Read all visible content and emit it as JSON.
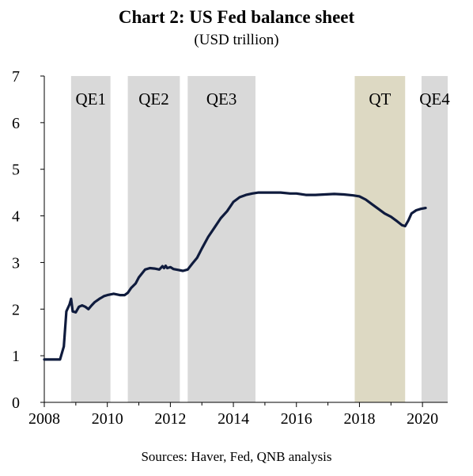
{
  "title": "Chart 2: US Fed balance sheet",
  "subtitle": "(USD trillion)",
  "source": "Sources: Haver, Fed, QNB analysis",
  "colors": {
    "line": "#0f1b3d",
    "qe_band": "#d9d9d9",
    "qt_band": "#ddd9c3",
    "axis": "#000000"
  },
  "chart_data": {
    "type": "line",
    "xlim": [
      2008,
      2020.8
    ],
    "ylim": [
      0,
      7
    ],
    "x_ticks": [
      "2008",
      "2010",
      "2012",
      "2014",
      "2016",
      "2018",
      "2020"
    ],
    "y_ticks": [
      "0",
      "1",
      "2",
      "3",
      "4",
      "5",
      "6",
      "7"
    ],
    "shaded_periods": [
      {
        "label": "QE1",
        "start": 2008.85,
        "end": 2010.1,
        "kind": "qe"
      },
      {
        "label": "QE2",
        "start": 2010.65,
        "end": 2012.3,
        "kind": "qe"
      },
      {
        "label": "QE3",
        "start": 2012.55,
        "end": 2014.7,
        "kind": "qe"
      },
      {
        "label": "QT",
        "start": 2017.85,
        "end": 2019.45,
        "kind": "qt"
      },
      {
        "label": "QE4",
        "start": 2019.97,
        "end": 2020.8,
        "kind": "qe"
      }
    ],
    "series": [
      {
        "x": [
          2008.0,
          2008.25,
          2008.5,
          2008.62,
          2008.7,
          2008.8,
          2008.85,
          2008.9,
          2009.0,
          2009.1,
          2009.2,
          2009.3,
          2009.4,
          2009.5,
          2009.6,
          2009.75,
          2009.9,
          2010.0,
          2010.2,
          2010.4,
          2010.55,
          2010.65,
          2010.75,
          2010.9,
          2011.0,
          2011.2,
          2011.35,
          2011.5,
          2011.65,
          2011.75,
          2011.8,
          2011.85,
          2011.9,
          2012.0,
          2012.1,
          2012.25,
          2012.4,
          2012.55,
          2012.7,
          2012.85,
          2013.0,
          2013.2,
          2013.4,
          2013.6,
          2013.8,
          2014.0,
          2014.2,
          2014.4,
          2014.6,
          2014.8,
          2015.0,
          2015.2,
          2015.5,
          2015.8,
          2016.0,
          2016.3,
          2016.6,
          2016.9,
          2017.2,
          2017.5,
          2017.8,
          2018.0,
          2018.2,
          2018.4,
          2018.6,
          2018.8,
          2019.0,
          2019.2,
          2019.35,
          2019.45,
          2019.55,
          2019.65,
          2019.8,
          2019.95,
          2020.1
        ],
        "values": [
          0.92,
          0.92,
          0.92,
          1.2,
          1.95,
          2.1,
          2.22,
          1.95,
          1.93,
          2.05,
          2.08,
          2.05,
          2.0,
          2.08,
          2.15,
          2.22,
          2.28,
          2.3,
          2.33,
          2.3,
          2.3,
          2.35,
          2.45,
          2.55,
          2.68,
          2.85,
          2.88,
          2.87,
          2.85,
          2.92,
          2.88,
          2.93,
          2.88,
          2.9,
          2.86,
          2.84,
          2.82,
          2.85,
          2.98,
          3.1,
          3.3,
          3.55,
          3.75,
          3.95,
          4.1,
          4.3,
          4.4,
          4.45,
          4.48,
          4.5,
          4.5,
          4.5,
          4.5,
          4.48,
          4.48,
          4.45,
          4.45,
          4.46,
          4.47,
          4.46,
          4.44,
          4.42,
          4.35,
          4.25,
          4.15,
          4.05,
          3.98,
          3.88,
          3.8,
          3.78,
          3.9,
          4.05,
          4.12,
          4.15,
          4.17
        ]
      }
    ]
  }
}
